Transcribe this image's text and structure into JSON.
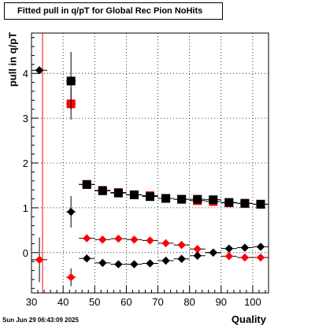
{
  "chart_data": {
    "type": "scatter",
    "title": "Fitted pull in q/pT for Global Rec Pion NoHits",
    "xlabel": "Quality",
    "ylabel": "pull in q/pT",
    "xlim": [
      30,
      105
    ],
    "ylim": [
      -0.9,
      4.9
    ],
    "xticks": [
      30,
      40,
      50,
      60,
      70,
      80,
      90,
      100
    ],
    "yticks": [
      0,
      1,
      2,
      3,
      4
    ],
    "grid": true,
    "series": [
      {
        "marker": "square",
        "color": "#ff0000",
        "points": [
          {
            "x": 42.5,
            "y": 3.32,
            "xerr": 1.5,
            "yerr": 0.35
          },
          {
            "x": 47.5,
            "y": 1.52,
            "xerr": 2.5,
            "yerr": 0.0
          },
          {
            "x": 52.5,
            "y": 1.39,
            "xerr": 2.5,
            "yerr": 0.0
          },
          {
            "x": 57.5,
            "y": 1.34,
            "xerr": 2.5,
            "yerr": 0.0
          },
          {
            "x": 62.5,
            "y": 1.29,
            "xerr": 2.5,
            "yerr": 0.0
          },
          {
            "x": 67.5,
            "y": 1.27,
            "xerr": 2.5,
            "yerr": 0.0
          },
          {
            "x": 72.5,
            "y": 1.21,
            "xerr": 2.5,
            "yerr": 0.0
          },
          {
            "x": 77.5,
            "y": 1.19,
            "xerr": 2.5,
            "yerr": 0.0
          },
          {
            "x": 82.5,
            "y": 1.16,
            "xerr": 2.5,
            "yerr": 0.0
          },
          {
            "x": 87.5,
            "y": 1.14,
            "xerr": 2.5,
            "yerr": 0.0
          },
          {
            "x": 92.5,
            "y": 1.11,
            "xerr": 2.5,
            "yerr": 0.0
          },
          {
            "x": 97.5,
            "y": 1.1,
            "xerr": 2.5,
            "yerr": 0.0
          },
          {
            "x": 102.5,
            "y": 1.08,
            "xerr": 2.5,
            "yerr": 0.0
          }
        ]
      },
      {
        "marker": "square",
        "color": "#000000",
        "points": [
          {
            "x": 42.5,
            "y": 3.83,
            "xerr": 1.5,
            "yerr": 0.65
          },
          {
            "x": 47.5,
            "y": 1.52,
            "xerr": 2.5,
            "yerr": 0.0
          },
          {
            "x": 52.5,
            "y": 1.38,
            "xerr": 2.5,
            "yerr": 0.0
          },
          {
            "x": 57.5,
            "y": 1.33,
            "xerr": 2.5,
            "yerr": 0.0
          },
          {
            "x": 62.5,
            "y": 1.29,
            "xerr": 2.5,
            "yerr": 0.0
          },
          {
            "x": 67.5,
            "y": 1.25,
            "xerr": 2.5,
            "yerr": 0.0
          },
          {
            "x": 72.5,
            "y": 1.21,
            "xerr": 2.5,
            "yerr": 0.0
          },
          {
            "x": 77.5,
            "y": 1.19,
            "xerr": 2.5,
            "yerr": 0.0
          },
          {
            "x": 82.5,
            "y": 1.19,
            "xerr": 2.5,
            "yerr": 0.0
          },
          {
            "x": 87.5,
            "y": 1.18,
            "xerr": 2.5,
            "yerr": 0.0
          },
          {
            "x": 92.5,
            "y": 1.12,
            "xerr": 2.5,
            "yerr": 0.0
          },
          {
            "x": 97.5,
            "y": 1.1,
            "xerr": 2.5,
            "yerr": 0.0
          },
          {
            "x": 102.5,
            "y": 1.08,
            "xerr": 2.5,
            "yerr": 0.0
          }
        ]
      },
      {
        "marker": "diamond",
        "color": "#ff0000",
        "points": [
          {
            "x": 32.5,
            "y": -0.16,
            "xerr": 2.5,
            "yerr": 0.5
          },
          {
            "x": 42.5,
            "y": -0.55,
            "xerr": 1.5,
            "yerr": 0.2
          },
          {
            "x": 47.5,
            "y": 0.32,
            "xerr": 2.5,
            "yerr": 0.0
          },
          {
            "x": 52.5,
            "y": 0.29,
            "xerr": 2.5,
            "yerr": 0.0
          },
          {
            "x": 57.5,
            "y": 0.31,
            "xerr": 2.5,
            "yerr": 0.0
          },
          {
            "x": 62.5,
            "y": 0.29,
            "xerr": 2.5,
            "yerr": 0.0
          },
          {
            "x": 67.5,
            "y": 0.27,
            "xerr": 2.5,
            "yerr": 0.0
          },
          {
            "x": 72.5,
            "y": 0.21,
            "xerr": 2.5,
            "yerr": 0.0
          },
          {
            "x": 77.5,
            "y": 0.17,
            "xerr": 2.5,
            "yerr": 0.0
          },
          {
            "x": 82.5,
            "y": 0.08,
            "xerr": 2.5,
            "yerr": 0.0
          },
          {
            "x": 87.5,
            "y": 0.0,
            "xerr": 2.5,
            "yerr": 0.0
          },
          {
            "x": 92.5,
            "y": -0.08,
            "xerr": 2.5,
            "yerr": 0.0
          },
          {
            "x": 97.5,
            "y": -0.11,
            "xerr": 2.5,
            "yerr": 0.0
          },
          {
            "x": 102.5,
            "y": -0.11,
            "xerr": 2.5,
            "yerr": 0.0
          }
        ]
      },
      {
        "marker": "diamond",
        "color": "#000000",
        "points": [
          {
            "x": 32.5,
            "y": 4.07,
            "xerr": 2.5,
            "yerr": 0.0
          },
          {
            "x": 42.5,
            "y": 0.91,
            "xerr": 1.5,
            "yerr": 0.35
          },
          {
            "x": 47.5,
            "y": -0.13,
            "xerr": 2.5,
            "yerr": 0.0
          },
          {
            "x": 52.5,
            "y": -0.23,
            "xerr": 2.5,
            "yerr": 0.0
          },
          {
            "x": 57.5,
            "y": -0.26,
            "xerr": 2.5,
            "yerr": 0.0
          },
          {
            "x": 62.5,
            "y": -0.26,
            "xerr": 2.5,
            "yerr": 0.0
          },
          {
            "x": 67.5,
            "y": -0.24,
            "xerr": 2.5,
            "yerr": 0.0
          },
          {
            "x": 72.5,
            "y": -0.18,
            "xerr": 2.5,
            "yerr": 0.0
          },
          {
            "x": 77.5,
            "y": -0.14,
            "xerr": 2.5,
            "yerr": 0.0
          },
          {
            "x": 82.5,
            "y": -0.07,
            "xerr": 2.5,
            "yerr": 0.0
          },
          {
            "x": 87.5,
            "y": 0.0,
            "xerr": 2.5,
            "yerr": 0.0
          },
          {
            "x": 92.5,
            "y": 0.09,
            "xerr": 2.5,
            "yerr": 0.0
          },
          {
            "x": 97.5,
            "y": 0.11,
            "xerr": 2.5,
            "yerr": 0.0
          },
          {
            "x": 102.5,
            "y": 0.13,
            "xerr": 2.5,
            "yerr": 0.0
          }
        ]
      }
    ],
    "vertical_line": {
      "x": 33.5,
      "color": "#ff0000"
    }
  },
  "footer": {
    "date": "Sun Jun 29 06:43:09 2025"
  }
}
